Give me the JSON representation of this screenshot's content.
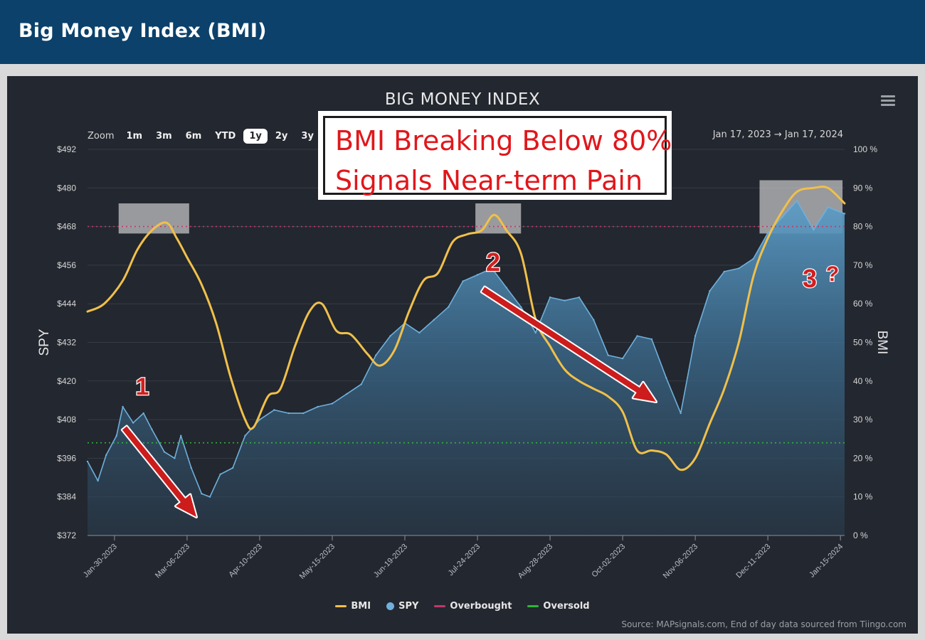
{
  "header": {
    "title": "Big Money Index (BMI)"
  },
  "chart": {
    "zoom_label": "Zoom",
    "zoom_buttons": [
      "1m",
      "3m",
      "6m",
      "YTD",
      "1y",
      "2y",
      "3y"
    ],
    "range_text": "Jan 17, 2023  →  Jan 17, 2024",
    "annotation": [
      "BMI Breaking Below 80%",
      "Signals Near-term Pain"
    ],
    "markers": [
      "1",
      "2",
      "3",
      "?"
    ],
    "source": "Source: MAPsignals.com, End of day data sourced from Tiingo.com"
  },
  "colors": {
    "bmi": "#f0c04a",
    "spy": "#6fb0dc",
    "overbought": "#c0396b",
    "oversold": "#2fb53a",
    "arrow": "#cc1c1c"
  },
  "chart_data": {
    "type": "line",
    "title": "BIG MONEY INDEX",
    "y_left_label": "SPY",
    "y_right_label": "BMI",
    "y_left_ticks": [
      "$372",
      "$384",
      "$396",
      "$408",
      "$420",
      "$432",
      "$444",
      "$456",
      "$468",
      "$480",
      "$492"
    ],
    "y_right_ticks": [
      "0 %",
      "10 %",
      "20 %",
      "30 %",
      "40 %",
      "50 %",
      "60 %",
      "70 %",
      "80 %",
      "90 %",
      "100 %"
    ],
    "y_left_range": [
      372,
      492
    ],
    "y_right_range": [
      0,
      100
    ],
    "x_range": [
      "2023-01-17",
      "2024-01-17"
    ],
    "x_ticks": [
      "Jan-30-2023",
      "Mar-06-2023",
      "Apr-10-2023",
      "May-15-2023",
      "Jun-19-2023",
      "Jul-24-2023",
      "Aug-28-2023",
      "Oct-02-2023",
      "Nov-06-2023",
      "Dec-11-2023",
      "Jan-15-2024"
    ],
    "reference_lines": {
      "overbought": 80,
      "oversold": 24
    },
    "legend": [
      {
        "name": "BMI",
        "kind": "line"
      },
      {
        "name": "SPY",
        "kind": "dot"
      },
      {
        "name": "Overbought",
        "kind": "line"
      },
      {
        "name": "Oversold",
        "kind": "line"
      }
    ],
    "series": [
      {
        "name": "BMI",
        "axis": "right",
        "points": [
          [
            "2023-01-17",
            58
          ],
          [
            "2023-01-25",
            60
          ],
          [
            "2023-02-03",
            66
          ],
          [
            "2023-02-10",
            74
          ],
          [
            "2023-02-17",
            79
          ],
          [
            "2023-02-24",
            81
          ],
          [
            "2023-03-01",
            77
          ],
          [
            "2023-03-06",
            72
          ],
          [
            "2023-03-13",
            65
          ],
          [
            "2023-03-20",
            55
          ],
          [
            "2023-03-27",
            41
          ],
          [
            "2023-04-03",
            30
          ],
          [
            "2023-04-07",
            28
          ],
          [
            "2023-04-14",
            36
          ],
          [
            "2023-04-20",
            38
          ],
          [
            "2023-04-27",
            49
          ],
          [
            "2023-05-04",
            58
          ],
          [
            "2023-05-10",
            60
          ],
          [
            "2023-05-17",
            53
          ],
          [
            "2023-05-24",
            52
          ],
          [
            "2023-06-01",
            47
          ],
          [
            "2023-06-07",
            44
          ],
          [
            "2023-06-14",
            48
          ],
          [
            "2023-06-21",
            58
          ],
          [
            "2023-06-28",
            66
          ],
          [
            "2023-07-05",
            68
          ],
          [
            "2023-07-12",
            76
          ],
          [
            "2023-07-19",
            78
          ],
          [
            "2023-07-26",
            79
          ],
          [
            "2023-08-01",
            83
          ],
          [
            "2023-08-07",
            79
          ],
          [
            "2023-08-14",
            73
          ],
          [
            "2023-08-21",
            56
          ],
          [
            "2023-08-28",
            49
          ],
          [
            "2023-09-04",
            43
          ],
          [
            "2023-09-11",
            40
          ],
          [
            "2023-09-18",
            38
          ],
          [
            "2023-09-25",
            36
          ],
          [
            "2023-10-02",
            32
          ],
          [
            "2023-10-09",
            22
          ],
          [
            "2023-10-16",
            22
          ],
          [
            "2023-10-23",
            21
          ],
          [
            "2023-10-30",
            17
          ],
          [
            "2023-11-06",
            20
          ],
          [
            "2023-11-13",
            29
          ],
          [
            "2023-11-20",
            38
          ],
          [
            "2023-11-27",
            50
          ],
          [
            "2023-12-04",
            67
          ],
          [
            "2023-12-11",
            77
          ],
          [
            "2023-12-18",
            84
          ],
          [
            "2023-12-25",
            89
          ],
          [
            "2024-01-02",
            90
          ],
          [
            "2024-01-09",
            90
          ],
          [
            "2024-01-17",
            86
          ]
        ]
      },
      {
        "name": "SPY",
        "axis": "left",
        "points": [
          [
            "2023-01-17",
            395
          ],
          [
            "2023-01-22",
            389
          ],
          [
            "2023-01-26",
            397
          ],
          [
            "2023-01-31",
            403
          ],
          [
            "2023-02-03",
            412
          ],
          [
            "2023-02-08",
            407
          ],
          [
            "2023-02-13",
            410
          ],
          [
            "2023-02-17",
            405
          ],
          [
            "2023-02-23",
            398
          ],
          [
            "2023-02-28",
            396
          ],
          [
            "2023-03-03",
            403
          ],
          [
            "2023-03-08",
            393
          ],
          [
            "2023-03-13",
            385
          ],
          [
            "2023-03-17",
            384
          ],
          [
            "2023-03-22",
            391
          ],
          [
            "2023-03-28",
            393
          ],
          [
            "2023-04-03",
            403
          ],
          [
            "2023-04-10",
            408
          ],
          [
            "2023-04-17",
            411
          ],
          [
            "2023-04-24",
            410
          ],
          [
            "2023-05-01",
            410
          ],
          [
            "2023-05-08",
            412
          ],
          [
            "2023-05-15",
            413
          ],
          [
            "2023-05-22",
            416
          ],
          [
            "2023-05-29",
            419
          ],
          [
            "2023-06-05",
            428
          ],
          [
            "2023-06-12",
            434
          ],
          [
            "2023-06-19",
            438
          ],
          [
            "2023-06-26",
            435
          ],
          [
            "2023-07-03",
            439
          ],
          [
            "2023-07-10",
            443
          ],
          [
            "2023-07-17",
            451
          ],
          [
            "2023-07-24",
            453
          ],
          [
            "2023-07-31",
            455
          ],
          [
            "2023-08-07",
            449
          ],
          [
            "2023-08-14",
            443
          ],
          [
            "2023-08-21",
            435
          ],
          [
            "2023-08-28",
            446
          ],
          [
            "2023-09-04",
            445
          ],
          [
            "2023-09-11",
            446
          ],
          [
            "2023-09-18",
            439
          ],
          [
            "2023-09-25",
            428
          ],
          [
            "2023-10-02",
            427
          ],
          [
            "2023-10-09",
            434
          ],
          [
            "2023-10-16",
            433
          ],
          [
            "2023-10-23",
            421
          ],
          [
            "2023-10-30",
            410
          ],
          [
            "2023-11-06",
            434
          ],
          [
            "2023-11-13",
            448
          ],
          [
            "2023-11-20",
            454
          ],
          [
            "2023-11-27",
            455
          ],
          [
            "2023-12-04",
            458
          ],
          [
            "2023-12-11",
            466
          ],
          [
            "2023-12-18",
            471
          ],
          [
            "2023-12-25",
            476
          ],
          [
            "2024-01-02",
            467
          ],
          [
            "2024-01-09",
            474
          ],
          [
            "2024-01-17",
            472
          ]
        ]
      }
    ]
  }
}
